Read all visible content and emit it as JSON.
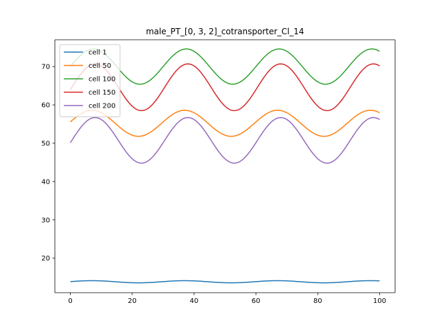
{
  "chart_data": {
    "type": "line",
    "title": "male_PT_[0, 3, 2]_cotransporter_Cl_14",
    "xlabel": "",
    "ylabel": "",
    "xlim": [
      -5,
      105
    ],
    "ylim": [
      11,
      77
    ],
    "xticks": [
      0,
      20,
      40,
      60,
      80,
      100
    ],
    "yticks": [
      20,
      30,
      40,
      50,
      60,
      70
    ],
    "grid": false,
    "legend_position": "top-left",
    "series": [
      {
        "name": "cell 1",
        "color": "#1f77b4",
        "baseline": 13.85,
        "amplitude": 0.28,
        "period": 30,
        "phase_peak": 7,
        "samples": {
          "0": 13.85,
          "7": 14.13,
          "22": 13.57,
          "37": 14.13,
          "52": 13.57,
          "67": 14.13,
          "82": 13.57,
          "97": 14.13,
          "100": 14.0
        }
      },
      {
        "name": "cell 50",
        "color": "#ff7f0e",
        "baseline": 55.2,
        "amplitude": 3.4,
        "period": 30,
        "phase_peak": 7,
        "samples": {
          "0": 55.6,
          "7": 58.6,
          "22": 51.8,
          "37": 58.6,
          "52": 51.8,
          "67": 58.6,
          "82": 51.8,
          "97": 58.6,
          "100": 58.2
        }
      },
      {
        "name": "cell 100",
        "color": "#2ca02c",
        "baseline": 70.0,
        "amplitude": 4.6,
        "period": 30,
        "phase_peak": 7.5,
        "samples": {
          "0": 70.0,
          "7.5": 74.6,
          "22.5": 65.4,
          "37.5": 74.6,
          "52.5": 65.4,
          "67.5": 74.6,
          "82.5": 65.4,
          "97.5": 74.6,
          "100": 74.0
        }
      },
      {
        "name": "cell 150",
        "color": "#d62728",
        "baseline": 64.6,
        "amplitude": 6.1,
        "period": 30,
        "phase_peak": 8,
        "samples": {
          "0": 64.7,
          "8": 70.7,
          "23": 58.5,
          "38": 70.7,
          "53": 58.5,
          "68": 70.7,
          "83": 58.5,
          "98": 70.7,
          "100": 70.0
        }
      },
      {
        "name": "cell 200",
        "color": "#9467bd",
        "baseline": 50.75,
        "amplitude": 5.95,
        "period": 30,
        "phase_peak": 8,
        "samples": {
          "0": 50.5,
          "8": 56.7,
          "23": 44.8,
          "38": 56.7,
          "53": 44.8,
          "68": 56.7,
          "83": 44.8,
          "98": 56.7,
          "100": 56.1
        }
      }
    ]
  }
}
